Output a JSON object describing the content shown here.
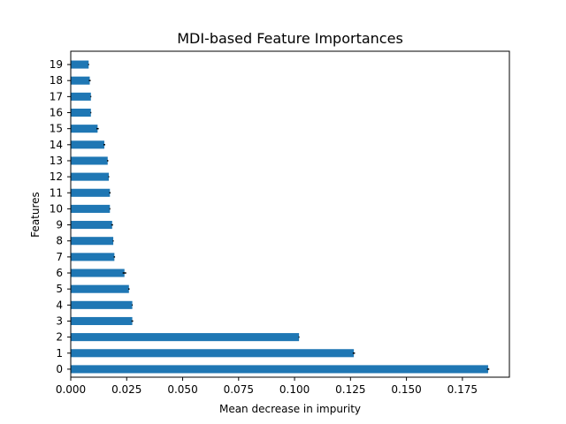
{
  "chart_data": {
    "type": "bar",
    "orientation": "horizontal",
    "title": "MDI-based Feature Importances",
    "xlabel": "Mean decrease in impurity",
    "ylabel": "Features",
    "categories": [
      "0",
      "1",
      "2",
      "3",
      "4",
      "5",
      "6",
      "7",
      "8",
      "9",
      "10",
      "11",
      "12",
      "13",
      "14",
      "15",
      "16",
      "17",
      "18",
      "19"
    ],
    "values": [
      0.1865,
      0.1265,
      0.102,
      0.0275,
      0.0275,
      0.026,
      0.024,
      0.0195,
      0.019,
      0.0185,
      0.0175,
      0.0175,
      0.017,
      0.0165,
      0.015,
      0.012,
      0.009,
      0.009,
      0.0085,
      0.008
    ],
    "errors": [
      0.0005,
      0.0005,
      0.0002,
      0.0004,
      0.0002,
      0.0003,
      0.0008,
      0.0003,
      0.0002,
      0.0004,
      0.0002,
      0.0003,
      0.0002,
      0.0003,
      0.0004,
      0.0005,
      0.0002,
      0.0002,
      0.0004,
      0.0002
    ],
    "xlim": [
      0.0,
      0.196
    ],
    "xticks": [
      0.0,
      0.025,
      0.05,
      0.075,
      0.1,
      0.125,
      0.15,
      0.175
    ],
    "xtick_labels": [
      "0.000",
      "0.025",
      "0.050",
      "0.075",
      "0.100",
      "0.125",
      "0.150",
      "0.175"
    ],
    "grid": false,
    "legend": "none",
    "colors": {
      "bar": "#1f77b4",
      "error": "#000000",
      "axes": "#000000",
      "background": "#ffffff"
    }
  }
}
